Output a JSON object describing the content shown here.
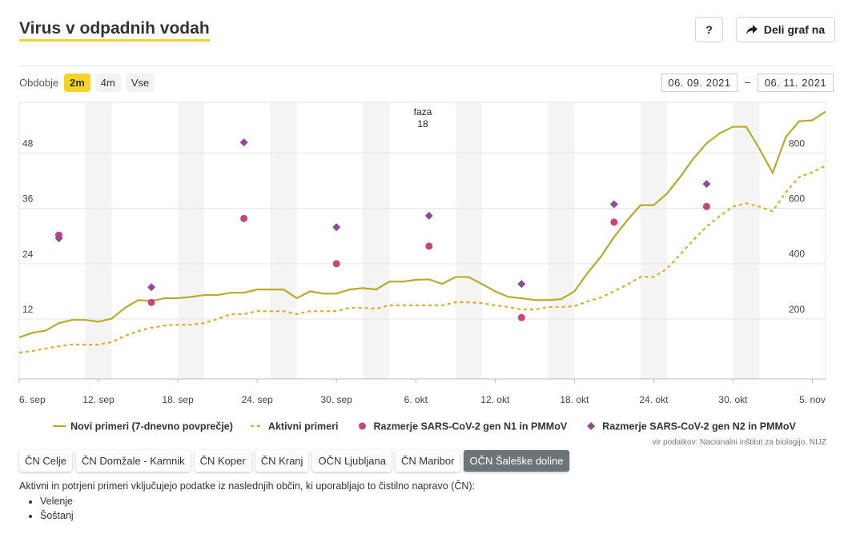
{
  "header": {
    "title": "Virus v odpadnih vodah",
    "help": "?",
    "share": "Deli graf na"
  },
  "controls": {
    "period_label": "Obdobje",
    "periods": [
      "2m",
      "4m",
      "Vse"
    ],
    "active_period_index": 0,
    "date_from": "06. 09. 2021",
    "date_separator": "–",
    "date_to": "06. 11. 2021"
  },
  "chart_data": {
    "type": "line",
    "phase_label": "faza",
    "phase": 18,
    "x": [
      "2021-09-06",
      "2021-09-07",
      "2021-09-08",
      "2021-09-09",
      "2021-09-10",
      "2021-09-11",
      "2021-09-12",
      "2021-09-13",
      "2021-09-14",
      "2021-09-15",
      "2021-09-16",
      "2021-09-17",
      "2021-09-18",
      "2021-09-19",
      "2021-09-20",
      "2021-09-21",
      "2021-09-22",
      "2021-09-23",
      "2021-09-24",
      "2021-09-25",
      "2021-09-26",
      "2021-09-27",
      "2021-09-28",
      "2021-09-29",
      "2021-09-30",
      "2021-10-01",
      "2021-10-02",
      "2021-10-03",
      "2021-10-04",
      "2021-10-05",
      "2021-10-06",
      "2021-10-07",
      "2021-10-08",
      "2021-10-09",
      "2021-10-10",
      "2021-10-11",
      "2021-10-12",
      "2021-10-13",
      "2021-10-14",
      "2021-10-15",
      "2021-10-16",
      "2021-10-17",
      "2021-10-18",
      "2021-10-19",
      "2021-10-20",
      "2021-10-21",
      "2021-10-22",
      "2021-10-23",
      "2021-10-24",
      "2021-10-25",
      "2021-10-26",
      "2021-10-27",
      "2021-10-28",
      "2021-10-29",
      "2021-10-30",
      "2021-10-31",
      "2021-11-01",
      "2021-11-02",
      "2021-11-03",
      "2021-11-04",
      "2021-11-05",
      "2021-11-06"
    ],
    "xlim": [
      "2021-09-06",
      "2021-11-06"
    ],
    "xticks": [
      {
        "value": "2021-09-06",
        "label": "6. sep"
      },
      {
        "value": "2021-09-12",
        "label": "12. sep"
      },
      {
        "value": "2021-09-18",
        "label": "18. sep"
      },
      {
        "value": "2021-09-24",
        "label": "24. sep"
      },
      {
        "value": "2021-09-30",
        "label": "30. sep"
      },
      {
        "value": "2021-10-06",
        "label": "6. okt"
      },
      {
        "value": "2021-10-12",
        "label": "12. okt"
      },
      {
        "value": "2021-10-18",
        "label": "18. okt"
      },
      {
        "value": "2021-10-24",
        "label": "24. okt"
      },
      {
        "value": "2021-10-30",
        "label": "30. okt"
      },
      {
        "value": "2021-11-05",
        "label": "5. nov"
      }
    ],
    "ylim": [
      -1,
      59
    ],
    "yticks": [
      12,
      24,
      36,
      48
    ],
    "y2lim": [
      -17,
      983
    ],
    "y2ticks": [
      200,
      400,
      600,
      800
    ],
    "grid": true,
    "weekend_shading": true,
    "series": [
      {
        "name": "Novi primeri (7-dnevno povprečje)",
        "type": "line",
        "style": "solid",
        "color": "#b9ab2a",
        "values": [
          8.0,
          9.0,
          9.5,
          11.1,
          11.8,
          11.8,
          11.4,
          12.1,
          14.4,
          16.1,
          15.9,
          16.5,
          16.5,
          16.8,
          17.2,
          17.2,
          17.7,
          17.7,
          18.4,
          18.4,
          18.4,
          16.5,
          18.0,
          17.5,
          17.5,
          18.4,
          18.7,
          18.4,
          20.1,
          20.1,
          20.5,
          20.6,
          19.6,
          21.1,
          21.1,
          19.6,
          18.0,
          16.8,
          16.5,
          16.1,
          16.1,
          16.3,
          18.0,
          22.0,
          25.5,
          29.8,
          33.4,
          36.7,
          36.7,
          39.2,
          42.8,
          46.8,
          50.1,
          52.3,
          53.7,
          53.7,
          48.9,
          43.7,
          51.5,
          54.9,
          55.1,
          57.0
        ]
      },
      {
        "name": "Aktivni primeri",
        "type": "line",
        "style": "dashed",
        "axis": "y2",
        "color": "#d9ad2e",
        "values": [
          78,
          84,
          93,
          101,
          107,
          107,
          107,
          116,
          139,
          156,
          168,
          176,
          179,
          179,
          185,
          199,
          217,
          217,
          228,
          228,
          228,
          217,
          228,
          228,
          228,
          240,
          240,
          237,
          249,
          249,
          249,
          249,
          249,
          260,
          260,
          257,
          249,
          243,
          234,
          234,
          243,
          243,
          246,
          263,
          277,
          300,
          324,
          352,
          352,
          381,
          433,
          485,
          534,
          572,
          606,
          618,
          606,
          589,
          658,
          713,
          730,
          754
        ]
      },
      {
        "name": "Razmerje SARS-CoV-2 gen N1 in PMMoV",
        "type": "scatter",
        "marker": "circle",
        "color": "#c9447f",
        "x": [
          "2021-09-09",
          "2021-09-16",
          "2021-09-23",
          "2021-09-30",
          "2021-10-07",
          "2021-10-14",
          "2021-10-21",
          "2021-10-28"
        ],
        "values": [
          30.2,
          15.6,
          33.8,
          24.0,
          27.8,
          12.3,
          33.0,
          36.4
        ]
      },
      {
        "name": "Razmerje SARS-CoV-2 gen N2 in PMMoV",
        "type": "scatter",
        "marker": "diamond",
        "color": "#8f4a98",
        "x": [
          "2021-09-09",
          "2021-09-16",
          "2021-09-23",
          "2021-09-30",
          "2021-10-07",
          "2021-10-14",
          "2021-10-21",
          "2021-10-28"
        ],
        "values": [
          29.5,
          18.9,
          50.3,
          31.9,
          34.4,
          19.6,
          36.9,
          41.3
        ]
      }
    ]
  },
  "source": "vir podatkov: Nacionalni inštitut za biologijo, NIJZ",
  "tabs": [
    "ČN Celje",
    "ČN Domžale - Kamnik",
    "ČN Koper",
    "ČN Kranj",
    "OČN Ljubljana",
    "ČN Maribor",
    "OČN Šaleške doline"
  ],
  "active_tab_index": 6,
  "note": "Aktivni in potrjeni primeri vključujejo podatke iz naslednjih občin, ki uporabljajo to čistilno napravo (ČN):",
  "municipalities": [
    "Velenje",
    "Šoštanj"
  ]
}
